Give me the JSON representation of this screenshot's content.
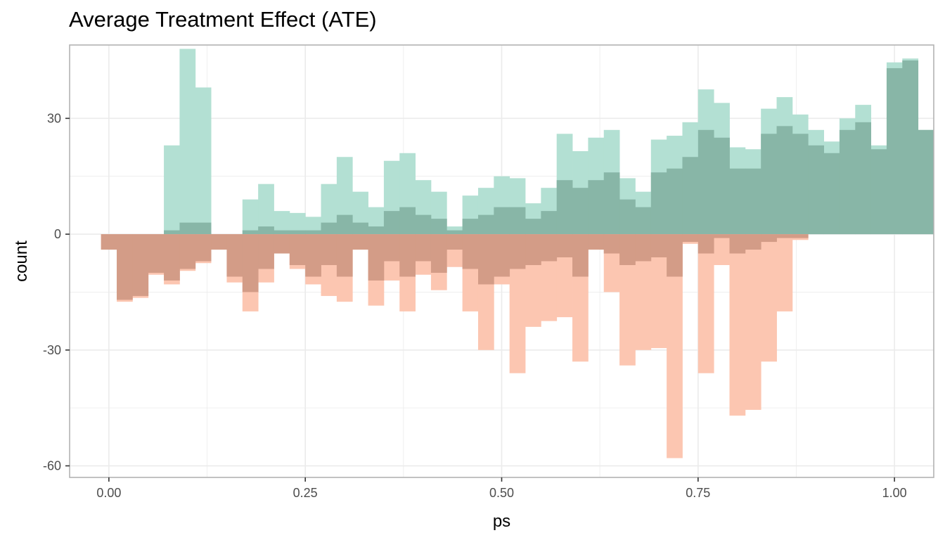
{
  "chart_data": {
    "type": "bar",
    "subtype": "mirrored-histogram",
    "title": "Average Treatment Effect (ATE)",
    "xlabel": "ps",
    "ylabel": "count",
    "xlim": [
      -0.05,
      1.05
    ],
    "ylim": [
      -63,
      49
    ],
    "xticks": [
      0.0,
      0.25,
      0.5,
      0.75,
      1.0
    ],
    "xtick_labels": [
      "0.00",
      "0.25",
      "0.50",
      "0.75",
      "1.00"
    ],
    "yticks": [
      -60,
      -30,
      0,
      30
    ],
    "ytick_labels": [
      "-60",
      "-30",
      "0",
      "30"
    ],
    "grid": true,
    "legend": "none",
    "bin_start": -0.01,
    "bin_width": 0.02,
    "colors": {
      "upper_light": "#b3e0d3",
      "upper_dark": "#88b6a7",
      "lower_light": "#fcc6b1",
      "lower_dark": "#d39c87",
      "gridline": "#ebebeb",
      "panel_border": "#b3b3b3"
    },
    "series": [
      {
        "values": [
          0,
          0,
          0,
          0,
          23,
          48,
          38,
          0,
          0,
          9,
          13,
          6,
          5.5,
          4.5,
          13,
          20,
          11,
          7,
          19,
          21,
          14,
          11,
          2,
          10,
          12,
          15,
          14.5,
          8,
          12,
          26,
          21.5,
          25,
          27,
          14.5,
          11,
          24.5,
          25.5,
          29,
          37.5,
          34,
          22.5,
          22,
          32.5,
          35.5,
          31,
          27,
          24,
          30,
          33.5,
          23,
          44.5,
          45.5,
          27
        ]
      },
      {
        "values": [
          0,
          0,
          0,
          0,
          1,
          3,
          3,
          0,
          0,
          1,
          2,
          1,
          1,
          1,
          3,
          5,
          3,
          2,
          6,
          7,
          5,
          4,
          1,
          4,
          5,
          7,
          7,
          4,
          6,
          14,
          12,
          14,
          16,
          9,
          7,
          16,
          17,
          20,
          27,
          25,
          17,
          17,
          26,
          28,
          26,
          23,
          21,
          27,
          29,
          22,
          43,
          45,
          27
        ]
      },
      {
        "values": [
          -4,
          -17.5,
          -16.5,
          -10.5,
          -13,
          -9.5,
          -7.5,
          -4,
          -12.5,
          -20,
          -12.5,
          -5,
          -9,
          -13,
          -16,
          -17.5,
          -4,
          -18.5,
          -12,
          -20,
          -10.5,
          -14.5,
          -8.5,
          -20,
          -30,
          -13,
          -36,
          -24,
          -22.5,
          -21.5,
          -33,
          -4,
          -15,
          -34,
          -30,
          -29.5,
          -58,
          -2.5,
          -36,
          -8,
          -47,
          -45.5,
          -33,
          -20,
          -1.5,
          0,
          0,
          0,
          0,
          0,
          0,
          0,
          0
        ]
      },
      {
        "values": [
          -4,
          -17,
          -16,
          -10,
          -12,
          -9,
          -7,
          -4,
          -11,
          -15,
          -9,
          -5,
          -8,
          -11,
          -8,
          -11,
          -4,
          -12,
          -7,
          -11,
          -7,
          -10,
          -4,
          -9,
          -13,
          -11,
          -9,
          -8,
          -7,
          -6,
          -11,
          -4,
          -5,
          -8,
          -7,
          -6,
          -11,
          -2,
          -5,
          -1,
          -5,
          -4,
          -2,
          -1,
          -1,
          0,
          0,
          0,
          0,
          0,
          0,
          0,
          0
        ]
      }
    ]
  }
}
